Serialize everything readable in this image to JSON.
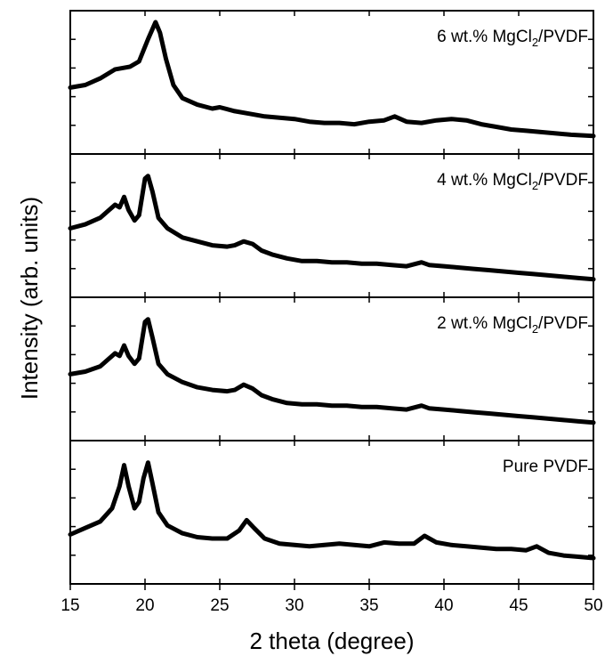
{
  "chart_data": {
    "type": "line",
    "title": "",
    "xlabel": "2 theta (degree)",
    "ylabel": "Intensity (arb. units)",
    "xlim": [
      15,
      50
    ],
    "x_ticks": [
      "15",
      "20",
      "25",
      "30",
      "35",
      "40",
      "45",
      "50"
    ],
    "y_ticks_labeled": false,
    "grid": false,
    "legend": "none",
    "line_color": "#000000",
    "series": [
      {
        "label_parts": [
          "6 wt.% MgCl",
          "2",
          "/PVDF"
        ],
        "points": [
          [
            15.0,
            0.48
          ],
          [
            16.0,
            0.5
          ],
          [
            17.0,
            0.55
          ],
          [
            18.0,
            0.62
          ],
          [
            19.0,
            0.64
          ],
          [
            19.6,
            0.68
          ],
          [
            20.2,
            0.85
          ],
          [
            20.7,
            0.98
          ],
          [
            21.0,
            0.9
          ],
          [
            21.4,
            0.7
          ],
          [
            21.9,
            0.5
          ],
          [
            22.5,
            0.4
          ],
          [
            23.5,
            0.35
          ],
          [
            24.5,
            0.32
          ],
          [
            25.0,
            0.33
          ],
          [
            26.0,
            0.3
          ],
          [
            27.0,
            0.28
          ],
          [
            28.0,
            0.26
          ],
          [
            29.0,
            0.25
          ],
          [
            30.0,
            0.24
          ],
          [
            31.0,
            0.22
          ],
          [
            32.0,
            0.21
          ],
          [
            33.0,
            0.21
          ],
          [
            34.0,
            0.2
          ],
          [
            35.0,
            0.22
          ],
          [
            36.0,
            0.23
          ],
          [
            36.7,
            0.26
          ],
          [
            37.5,
            0.22
          ],
          [
            38.5,
            0.21
          ],
          [
            39.5,
            0.23
          ],
          [
            40.5,
            0.24
          ],
          [
            41.5,
            0.23
          ],
          [
            42.5,
            0.2
          ],
          [
            43.5,
            0.18
          ],
          [
            44.5,
            0.16
          ],
          [
            45.5,
            0.15
          ],
          [
            46.5,
            0.14
          ],
          [
            47.5,
            0.13
          ],
          [
            48.5,
            0.12
          ],
          [
            50.0,
            0.11
          ]
        ]
      },
      {
        "label_parts": [
          "4 wt.% MgCl",
          "2",
          "/PVDF"
        ],
        "points": [
          [
            15.0,
            0.5
          ],
          [
            16.0,
            0.53
          ],
          [
            17.0,
            0.58
          ],
          [
            17.6,
            0.64
          ],
          [
            18.0,
            0.68
          ],
          [
            18.3,
            0.66
          ],
          [
            18.6,
            0.74
          ],
          [
            18.9,
            0.64
          ],
          [
            19.3,
            0.56
          ],
          [
            19.6,
            0.6
          ],
          [
            20.0,
            0.88
          ],
          [
            20.2,
            0.9
          ],
          [
            20.5,
            0.78
          ],
          [
            20.9,
            0.58
          ],
          [
            21.5,
            0.5
          ],
          [
            22.5,
            0.43
          ],
          [
            23.5,
            0.4
          ],
          [
            24.5,
            0.37
          ],
          [
            25.5,
            0.36
          ],
          [
            26.0,
            0.37
          ],
          [
            26.6,
            0.4
          ],
          [
            27.2,
            0.38
          ],
          [
            27.8,
            0.33
          ],
          [
            28.5,
            0.3
          ],
          [
            29.5,
            0.27
          ],
          [
            30.5,
            0.25
          ],
          [
            31.5,
            0.25
          ],
          [
            32.5,
            0.24
          ],
          [
            33.5,
            0.24
          ],
          [
            34.5,
            0.23
          ],
          [
            35.5,
            0.23
          ],
          [
            36.5,
            0.22
          ],
          [
            37.5,
            0.21
          ],
          [
            38.5,
            0.24
          ],
          [
            39.0,
            0.22
          ],
          [
            40.0,
            0.21
          ],
          [
            41.0,
            0.2
          ],
          [
            42.0,
            0.19
          ],
          [
            43.0,
            0.18
          ],
          [
            44.0,
            0.17
          ],
          [
            45.0,
            0.16
          ],
          [
            46.0,
            0.15
          ],
          [
            47.0,
            0.14
          ],
          [
            48.0,
            0.13
          ],
          [
            49.0,
            0.12
          ],
          [
            50.0,
            0.11
          ]
        ]
      },
      {
        "label_parts": [
          "2 wt.% MgCl",
          "2",
          "/PVDF"
        ],
        "points": [
          [
            15.0,
            0.48
          ],
          [
            16.0,
            0.5
          ],
          [
            17.0,
            0.54
          ],
          [
            17.6,
            0.6
          ],
          [
            18.0,
            0.64
          ],
          [
            18.3,
            0.62
          ],
          [
            18.6,
            0.7
          ],
          [
            18.9,
            0.62
          ],
          [
            19.3,
            0.56
          ],
          [
            19.6,
            0.6
          ],
          [
            20.0,
            0.88
          ],
          [
            20.2,
            0.9
          ],
          [
            20.5,
            0.76
          ],
          [
            20.9,
            0.56
          ],
          [
            21.5,
            0.48
          ],
          [
            22.5,
            0.42
          ],
          [
            23.5,
            0.38
          ],
          [
            24.5,
            0.36
          ],
          [
            25.5,
            0.35
          ],
          [
            26.0,
            0.36
          ],
          [
            26.6,
            0.4
          ],
          [
            27.2,
            0.37
          ],
          [
            27.8,
            0.32
          ],
          [
            28.5,
            0.29
          ],
          [
            29.5,
            0.26
          ],
          [
            30.5,
            0.25
          ],
          [
            31.5,
            0.25
          ],
          [
            32.5,
            0.24
          ],
          [
            33.5,
            0.24
          ],
          [
            34.5,
            0.23
          ],
          [
            35.5,
            0.23
          ],
          [
            36.5,
            0.22
          ],
          [
            37.5,
            0.21
          ],
          [
            38.5,
            0.24
          ],
          [
            39.0,
            0.22
          ],
          [
            40.0,
            0.21
          ],
          [
            41.0,
            0.2
          ],
          [
            42.0,
            0.19
          ],
          [
            43.0,
            0.18
          ],
          [
            44.0,
            0.17
          ],
          [
            45.0,
            0.16
          ],
          [
            46.0,
            0.15
          ],
          [
            47.0,
            0.14
          ],
          [
            48.0,
            0.13
          ],
          [
            49.0,
            0.12
          ],
          [
            50.0,
            0.11
          ]
        ]
      },
      {
        "label_parts": [
          "Pure PVDF"
        ],
        "points": [
          [
            15.0,
            0.35
          ],
          [
            16.0,
            0.4
          ],
          [
            17.0,
            0.45
          ],
          [
            17.8,
            0.55
          ],
          [
            18.3,
            0.72
          ],
          [
            18.6,
            0.88
          ],
          [
            18.9,
            0.72
          ],
          [
            19.3,
            0.55
          ],
          [
            19.6,
            0.6
          ],
          [
            19.9,
            0.78
          ],
          [
            20.2,
            0.9
          ],
          [
            20.5,
            0.74
          ],
          [
            20.9,
            0.52
          ],
          [
            21.5,
            0.42
          ],
          [
            22.5,
            0.36
          ],
          [
            23.5,
            0.33
          ],
          [
            24.5,
            0.32
          ],
          [
            25.5,
            0.32
          ],
          [
            26.3,
            0.38
          ],
          [
            26.8,
            0.46
          ],
          [
            27.3,
            0.4
          ],
          [
            28.0,
            0.32
          ],
          [
            29.0,
            0.28
          ],
          [
            30.0,
            0.27
          ],
          [
            31.0,
            0.26
          ],
          [
            32.0,
            0.27
          ],
          [
            33.0,
            0.28
          ],
          [
            34.0,
            0.27
          ],
          [
            35.0,
            0.26
          ],
          [
            36.0,
            0.29
          ],
          [
            37.0,
            0.28
          ],
          [
            38.0,
            0.28
          ],
          [
            38.7,
            0.34
          ],
          [
            39.5,
            0.29
          ],
          [
            40.5,
            0.27
          ],
          [
            41.5,
            0.26
          ],
          [
            42.5,
            0.25
          ],
          [
            43.5,
            0.24
          ],
          [
            44.5,
            0.24
          ],
          [
            45.5,
            0.23
          ],
          [
            46.2,
            0.26
          ],
          [
            47.0,
            0.21
          ],
          [
            48.0,
            0.19
          ],
          [
            49.0,
            0.18
          ],
          [
            50.0,
            0.17
          ]
        ]
      }
    ]
  }
}
